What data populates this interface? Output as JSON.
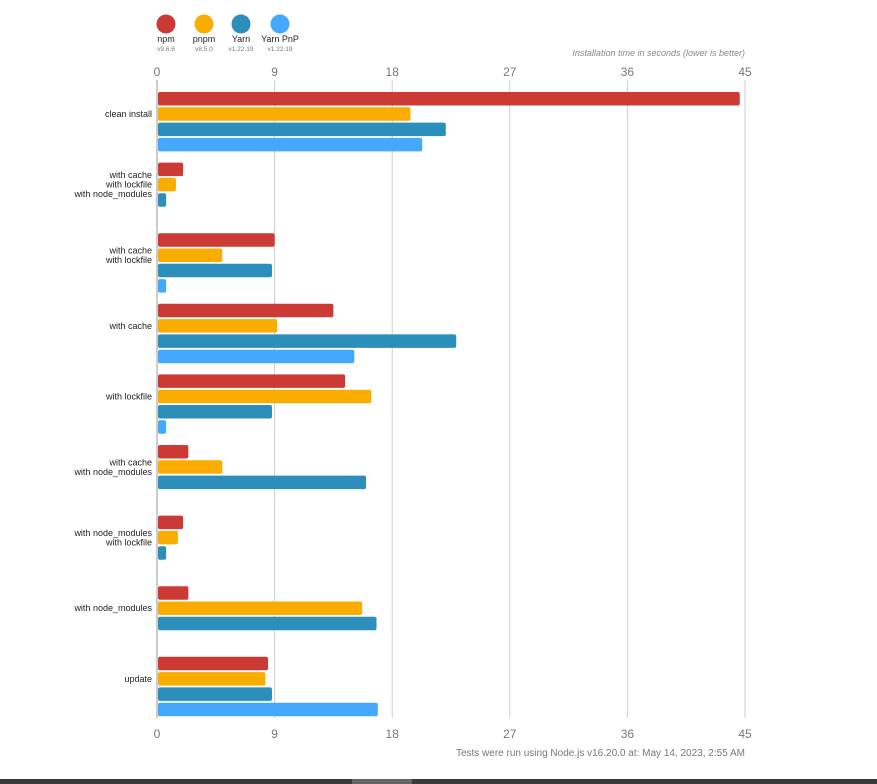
{
  "chart_data": {
    "type": "bar",
    "orientation": "horizontal",
    "title": "Installation time in seconds (lower is better)",
    "footer": "Tests were run using Node.js v16.20.0 at: May 14, 2023, 2:55 AM",
    "xlim": [
      0,
      45
    ],
    "xticks": [
      "0",
      "9",
      "18",
      "27",
      "36",
      "45"
    ],
    "grid": true,
    "legend_position": "top-left",
    "categories": [
      [
        "clean install"
      ],
      [
        "with cache",
        "with lockfile",
        "with node_modules"
      ],
      [
        "with cache",
        "with lockfile"
      ],
      [
        "with cache"
      ],
      [
        "with lockfile"
      ],
      [
        "with cache",
        "with node_modules"
      ],
      [
        "with node_modules",
        "with lockfile"
      ],
      [
        "with node_modules"
      ],
      [
        "update"
      ]
    ],
    "series": [
      {
        "name": "npm",
        "version": "v9.6.6",
        "color": "#cc3a35",
        "values": [
          44.6,
          2.0,
          9.0,
          13.5,
          14.4,
          2.4,
          2.0,
          2.4,
          8.5
        ]
      },
      {
        "name": "pnpm",
        "version": "v8.5.0",
        "color": "#f9ad00",
        "values": [
          19.4,
          1.45,
          5.0,
          9.2,
          16.4,
          5.0,
          1.6,
          15.7,
          8.3
        ]
      },
      {
        "name": "Yarn",
        "version": "v1.22.19",
        "color": "#2c8ebb",
        "values": [
          22.1,
          0.7,
          8.8,
          22.9,
          8.8,
          16.0,
          0.7,
          16.8,
          8.8
        ]
      },
      {
        "name": "Yarn PnP",
        "version": "v1.22.19",
        "color": "#44a8fc",
        "values": [
          20.3,
          null,
          0.7,
          15.1,
          0.7,
          null,
          null,
          null,
          16.9
        ]
      }
    ]
  }
}
